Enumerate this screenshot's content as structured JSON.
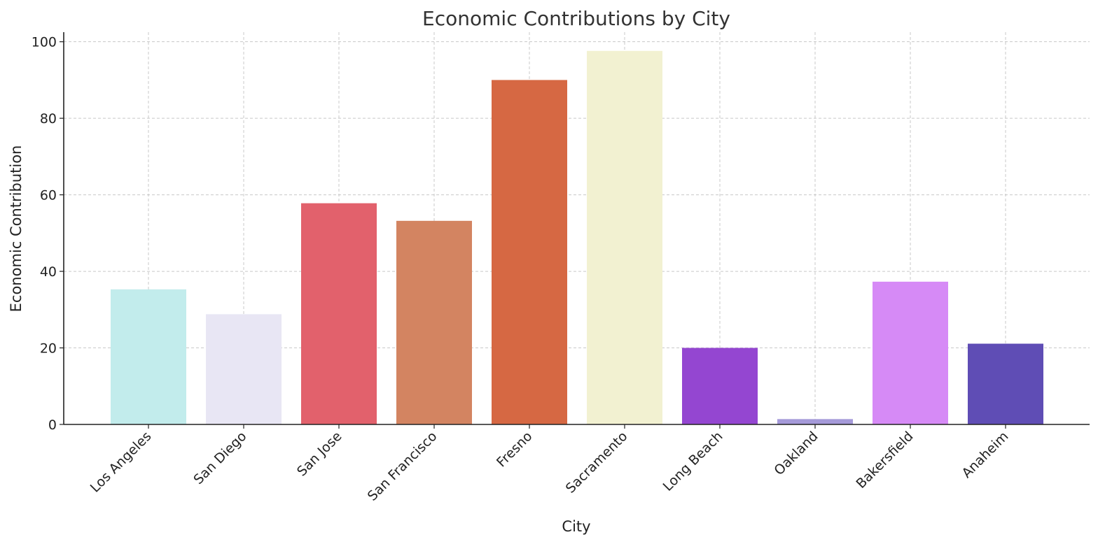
{
  "chart_data": {
    "type": "bar",
    "title": "Economic Contributions by City",
    "xlabel": "City",
    "ylabel": "Economic Contribution",
    "ylim": [
      0,
      102.5
    ],
    "yticks": [
      0,
      20,
      40,
      60,
      80,
      100
    ],
    "grid": true,
    "categories": [
      "Los Angeles",
      "San Diego",
      "San Jose",
      "San Francisco",
      "Fresno",
      "Sacramento",
      "Long Beach",
      "Oakland",
      "Bakersfield",
      "Anaheim"
    ],
    "values": [
      35.3,
      28.8,
      57.8,
      53.2,
      90.0,
      97.6,
      20.0,
      1.4,
      37.3,
      21.1
    ],
    "colors": [
      "#c2ecec",
      "#e8e6f4",
      "#e2616c",
      "#d38461",
      "#d66843",
      "#f2f1d1",
      "#9446d1",
      "#a59ad9",
      "#d68af6",
      "#5f4db5"
    ]
  }
}
